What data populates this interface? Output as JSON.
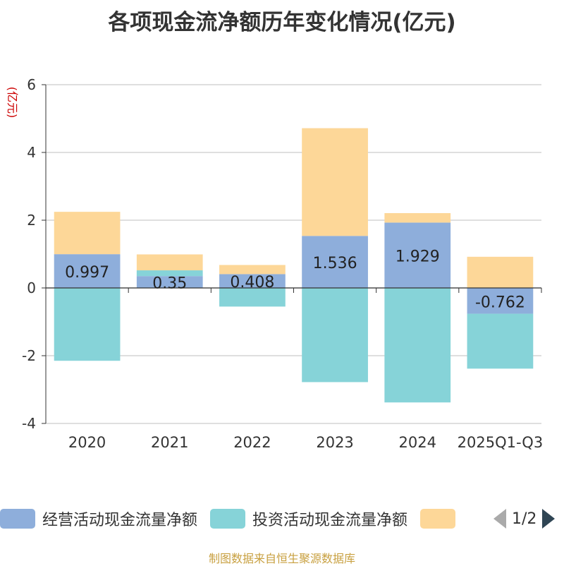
{
  "chart_data": {
    "type": "bar",
    "title": "各项现金流净额历年变化情况(亿元)",
    "ylabel": "(亿元)",
    "xlabel": "",
    "ylim": [
      -4,
      6
    ],
    "yticks": [
      -4,
      -2,
      0,
      2,
      4,
      6
    ],
    "grid": true,
    "stacked": true,
    "categories": [
      "2020",
      "2021",
      "2022",
      "2023",
      "2024",
      "2025Q1-Q3"
    ],
    "series": [
      {
        "name": "经营活动现金流量净额",
        "color": "#8eaedb",
        "values": [
          0.997,
          0.35,
          0.408,
          1.536,
          1.929,
          -0.762
        ],
        "labels": [
          "0.997",
          "0.35",
          "0.408",
          "1.536",
          "1.929",
          "-0.762"
        ]
      },
      {
        "name": "投资活动现金流量净额",
        "color": "#86d3d8",
        "values": [
          -2.15,
          0.17,
          -0.55,
          -2.78,
          -3.38,
          -1.62
        ]
      },
      {
        "name": "",
        "color": "#fdd798",
        "values": [
          1.25,
          0.47,
          0.27,
          3.18,
          0.28,
          0.92
        ]
      }
    ],
    "legend_position": "bottom",
    "legend_page": "1/2",
    "source": "制图数据来自恒生聚源数据库"
  }
}
